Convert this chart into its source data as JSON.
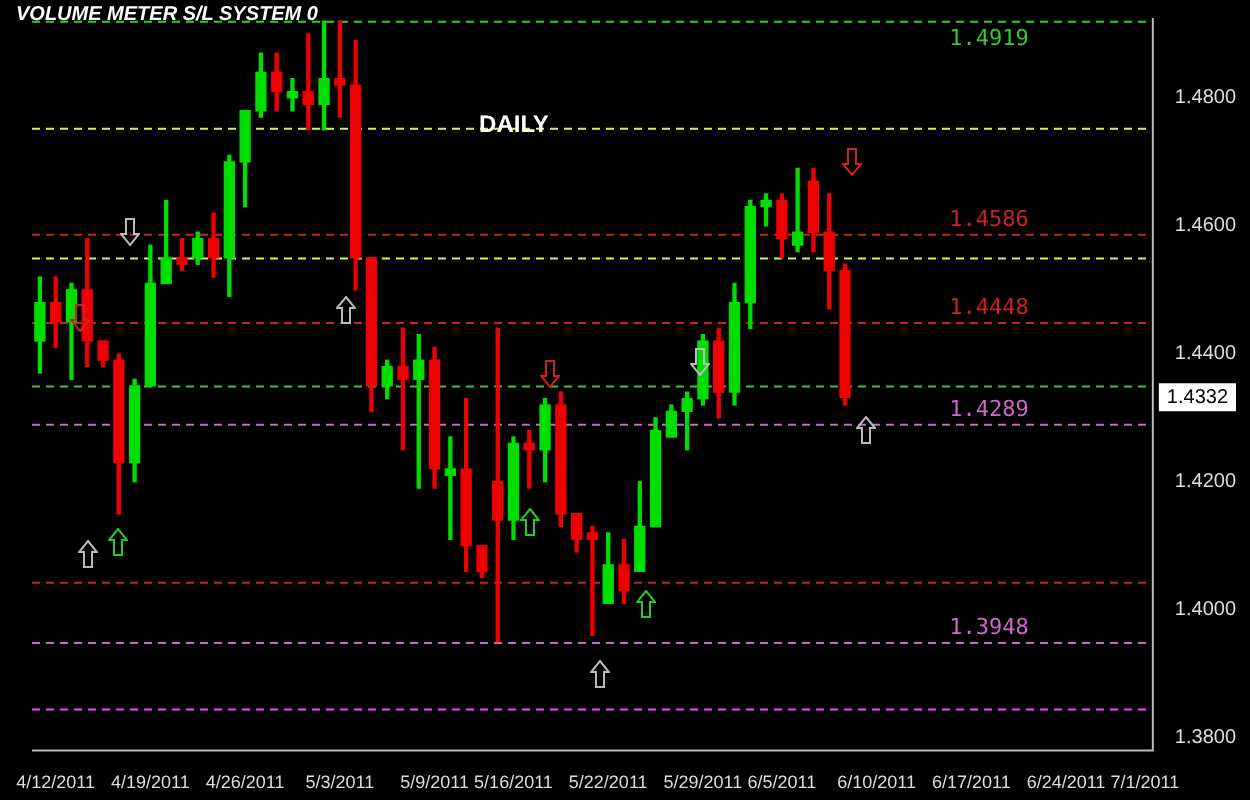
{
  "chart_data": {
    "type": "candlestick",
    "title": "VOLUME METER S/L SYSTEM 0",
    "categories": [
      null,
      "4/12/2011",
      null,
      null,
      null,
      null,
      null,
      "4/19/2011",
      null,
      null,
      null,
      null,
      null,
      "4/26/2011",
      null,
      null,
      null,
      null,
      null,
      "5/3/2011",
      null,
      null,
      null,
      null,
      null,
      "5/9/2011",
      null,
      null,
      null,
      null,
      "5/16/2011",
      null,
      null,
      null,
      null,
      null,
      "5/22/2011",
      null,
      null,
      null,
      null,
      null,
      "5/29/2011",
      null,
      null,
      null,
      null,
      "6/5/2011",
      null,
      null,
      null,
      null,
      null,
      "6/10/2011",
      null,
      null,
      null,
      null,
      null,
      "6/17/2011",
      null,
      null,
      null,
      null,
      null,
      "6/24/2011",
      null,
      null,
      null,
      null,
      "7/1/2011"
    ],
    "ohlc": [
      [
        1.442,
        1.452,
        1.437,
        1.448
      ],
      [
        1.448,
        1.452,
        1.441,
        1.445
      ],
      [
        1.445,
        1.451,
        1.436,
        1.45
      ],
      [
        1.45,
        1.458,
        1.438,
        1.442
      ],
      [
        1.442,
        1.442,
        1.438,
        1.439
      ],
      [
        1.439,
        1.44,
        1.415,
        1.423
      ],
      [
        1.423,
        1.436,
        1.42,
        1.435
      ],
      [
        1.435,
        1.457,
        1.435,
        1.451
      ],
      [
        1.451,
        1.464,
        1.451,
        1.455
      ],
      [
        1.455,
        1.458,
        1.453,
        1.454
      ],
      [
        1.455,
        1.459,
        1.454,
        1.458
      ],
      [
        1.458,
        1.462,
        1.452,
        1.455
      ],
      [
        1.455,
        1.471,
        1.449,
        1.47
      ],
      [
        1.47,
        1.478,
        1.463,
        1.478
      ],
      [
        1.478,
        1.487,
        1.477,
        1.484
      ],
      [
        1.484,
        1.487,
        1.478,
        1.481
      ],
      [
        1.48,
        1.483,
        1.478,
        1.481
      ],
      [
        1.481,
        1.49,
        1.475,
        1.479
      ],
      [
        1.479,
        1.492,
        1.475,
        1.483
      ],
      [
        1.483,
        1.492,
        1.477,
        1.482
      ],
      [
        1.482,
        1.489,
        1.45,
        1.455
      ],
      [
        1.455,
        1.455,
        1.431,
        1.435
      ],
      [
        1.435,
        1.439,
        1.433,
        1.438
      ],
      [
        1.438,
        1.444,
        1.425,
        1.436
      ],
      [
        1.436,
        1.443,
        1.419,
        1.439
      ],
      [
        1.439,
        1.441,
        1.419,
        1.422
      ],
      [
        1.421,
        1.427,
        1.411,
        1.422
      ],
      [
        1.422,
        1.433,
        1.406,
        1.41
      ],
      [
        1.41,
        1.41,
        1.405,
        1.406
      ],
      [
        1.42,
        1.444,
        1.395,
        1.414
      ],
      [
        1.414,
        1.427,
        1.411,
        1.426
      ],
      [
        1.426,
        1.428,
        1.419,
        1.425
      ],
      [
        1.425,
        1.433,
        1.42,
        1.432
      ],
      [
        1.432,
        1.434,
        1.413,
        1.415
      ],
      [
        1.415,
        1.415,
        1.409,
        1.411
      ],
      [
        1.412,
        1.413,
        1.396,
        1.411
      ],
      [
        1.401,
        1.412,
        1.401,
        1.407
      ],
      [
        1.407,
        1.411,
        1.401,
        1.403
      ],
      [
        1.406,
        1.42,
        1.406,
        1.413
      ],
      [
        1.413,
        1.43,
        1.413,
        1.428
      ],
      [
        1.427,
        1.432,
        1.427,
        1.431
      ],
      [
        1.431,
        1.434,
        1.425,
        1.433
      ],
      [
        1.433,
        1.443,
        1.432,
        1.442
      ],
      [
        1.442,
        1.444,
        1.43,
        1.434
      ],
      [
        1.434,
        1.451,
        1.432,
        1.448
      ],
      [
        1.448,
        1.464,
        1.444,
        1.463
      ],
      [
        1.463,
        1.465,
        1.46,
        1.464
      ],
      [
        1.464,
        1.465,
        1.455,
        1.458
      ],
      [
        1.457,
        1.469,
        1.456,
        1.459
      ],
      [
        1.467,
        1.469,
        1.456,
        1.459
      ],
      [
        1.459,
        1.465,
        1.447,
        1.453
      ],
      [
        1.453,
        1.454,
        1.432,
        1.4332
      ],
      null,
      null,
      null,
      null,
      null,
      null,
      null,
      null,
      null,
      null,
      null,
      null,
      null,
      null,
      null,
      null,
      null,
      null,
      null
    ],
    "colors": [
      "#00dd00",
      "#ee0000",
      "#00dd00",
      "#ee0000",
      "#ee0000",
      "#ee0000",
      "#00dd00",
      "#00dd00",
      "#00dd00",
      "#ee0000",
      "#00dd00",
      "#ee0000",
      "#00dd00",
      "#00dd00",
      "#00dd00",
      "#ee0000",
      "#00dd00",
      "#ee0000",
      "#00dd00",
      "#ee0000",
      "#ee0000",
      "#ee0000",
      "#00dd00",
      "#ee0000",
      "#00dd00",
      "#ee0000",
      "#00dd00",
      "#ee0000",
      "#ee0000",
      "#ee0000",
      "#00dd00",
      "#ee0000",
      "#00dd00",
      "#ee0000",
      "#ee0000",
      "#ee0000",
      "#00dd00",
      "#ee0000",
      "#00dd00",
      "#00dd00",
      "#00dd00",
      "#00dd00",
      "#00dd00",
      "#ee0000",
      "#00dd00",
      "#00dd00",
      "#00dd00",
      "#ee0000",
      "#00dd00",
      "#ee0000",
      "#ee0000",
      "#ee0000",
      null,
      null,
      null,
      null,
      null,
      null,
      null,
      null,
      null,
      null,
      null,
      null,
      null,
      null,
      null,
      null,
      null,
      null,
      null
    ],
    "ylim": [
      1.378,
      1.4925
    ],
    "yticks": [
      {
        "value": 1.38,
        "label": "1.3800"
      },
      {
        "value": 1.4,
        "label": "1.4000"
      },
      {
        "value": 1.42,
        "label": "1.4200"
      },
      {
        "value": 1.44,
        "label": "1.4400"
      },
      {
        "value": 1.46,
        "label": "1.4600"
      },
      {
        "value": 1.48,
        "label": "1.4800"
      }
    ],
    "ref_lines": [
      {
        "axis": "y",
        "value": 1.4919,
        "label": "1.4919",
        "color": "#33cc33",
        "line_style": "dashed"
      },
      {
        "axis": "y",
        "value": 1.4586,
        "label": "1.4586",
        "color": "#cc2222",
        "line_style": "dashed"
      },
      {
        "axis": "y",
        "value": 1.4448,
        "label": "1.4448",
        "color": "#cc2222",
        "line_style": "dashed"
      },
      {
        "axis": "y",
        "value": 1.4289,
        "label": "1.4289",
        "color": "#cc66cc",
        "line_style": "dashed"
      },
      {
        "axis": "y",
        "value": 1.3948,
        "label": "1.3948",
        "color": "#cc66cc",
        "line_style": "dashed"
      },
      {
        "axis": "y",
        "value": 1.4752,
        "color": "#ccff33",
        "line_style": "dashed"
      },
      {
        "axis": "y",
        "value": 1.4549,
        "color": "#ccff33",
        "line_style": "dashed"
      },
      {
        "axis": "y",
        "value": 1.4349,
        "color": "#33cc33",
        "line_style": "dashed"
      },
      {
        "axis": "y",
        "value": 1.4042,
        "color": "#cc2222",
        "line_style": "dashed"
      },
      {
        "axis": "y",
        "value": 1.3844,
        "color": "#ff44ff",
        "line_style": "dashed"
      }
    ],
    "annotations": [
      "DAILY",
      {
        "text": "1.4332",
        "y": 1.4332
      }
    ]
  }
}
